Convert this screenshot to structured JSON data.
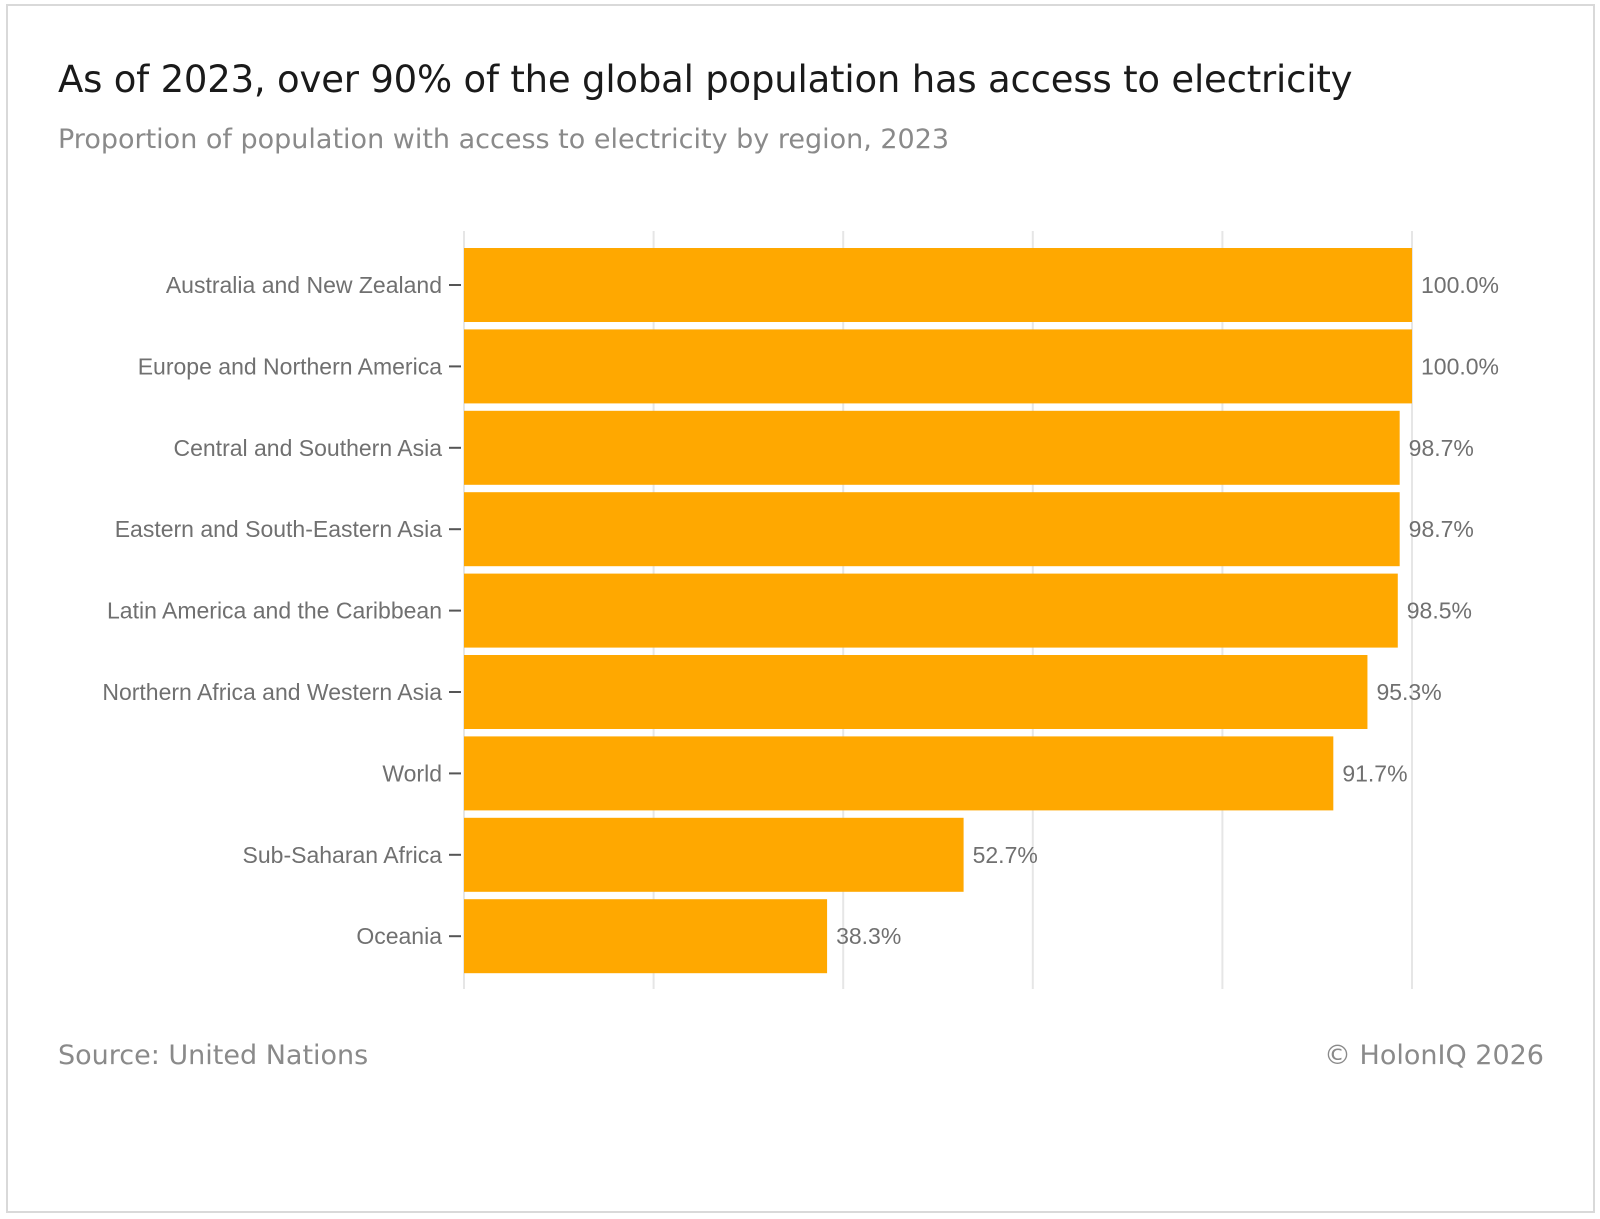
{
  "header": {
    "title": "As of 2023, over 90% of the global population has access to electricity",
    "subtitle": "Proportion of population with access to electricity by region, 2023"
  },
  "footer": {
    "source": "Source: United Nations",
    "copyright": "© HolonIQ 2026"
  },
  "colors": {
    "bar": "#FFA800",
    "grid": "#e6e6e6",
    "label": "#707070"
  },
  "chart_data": {
    "type": "bar",
    "orientation": "horizontal",
    "title": "As of 2023, over 90% of the global population has access to electricity",
    "subtitle": "Proportion of population with access to electricity by region, 2023",
    "xlabel": "",
    "ylabel": "",
    "xlim": [
      0,
      100
    ],
    "grid": true,
    "categories": [
      "Australia and New Zealand",
      "Europe and Northern America",
      "Central and Southern Asia",
      "Eastern and South-Eastern Asia",
      "Latin America and the Caribbean",
      "Northern Africa and Western Asia",
      "World",
      "Sub-Saharan Africa",
      "Oceania"
    ],
    "values": [
      100.0,
      100.0,
      98.7,
      98.7,
      98.5,
      95.3,
      91.7,
      52.7,
      38.3
    ],
    "data_labels": [
      "100.0%",
      "100.0%",
      "98.7%",
      "98.7%",
      "98.5%",
      "95.3%",
      "91.7%",
      "52.7%",
      "38.3%"
    ]
  }
}
